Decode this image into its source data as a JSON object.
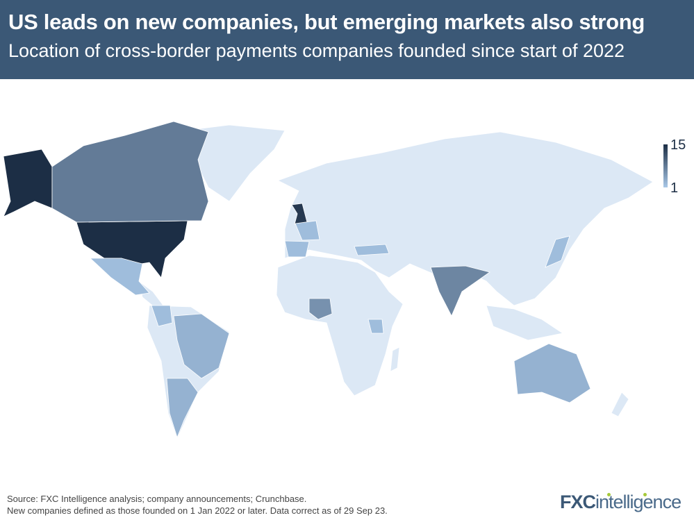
{
  "header": {
    "title": "US leads on new companies, but emerging markets also strong",
    "subtitle": "Location of cross-border payments companies founded since start of 2022"
  },
  "legend": {
    "max": "15",
    "min": "1",
    "color_max": "#1c2e45",
    "color_min": "#a9c8e8"
  },
  "map_data": {
    "base_color": "#dce8f5",
    "countries": [
      {
        "name": "United States",
        "value": 15
      },
      {
        "name": "United Kingdom",
        "value": 14
      },
      {
        "name": "Canada",
        "value": 8
      },
      {
        "name": "India",
        "value": 7
      },
      {
        "name": "Nigeria",
        "value": 6
      },
      {
        "name": "Brazil",
        "value": 3
      },
      {
        "name": "Argentina",
        "value": 3
      },
      {
        "name": "Australia",
        "value": 3
      },
      {
        "name": "Mexico",
        "value": 2
      },
      {
        "name": "Colombia",
        "value": 2
      },
      {
        "name": "France",
        "value": 2
      },
      {
        "name": "Spain",
        "value": 2
      },
      {
        "name": "Turkey",
        "value": 2
      },
      {
        "name": "Kenya",
        "value": 2
      },
      {
        "name": "Japan",
        "value": 2
      }
    ]
  },
  "footer": {
    "line1": "Source: FXC Intelligence analysis; company announcements; Crunchbase.",
    "line2": "New companies defined as those founded on 1 Jan 2022 or later. Data correct as of 29 Sep 23."
  },
  "logo": {
    "fxc": "FXC",
    "rest": "intelligence"
  }
}
